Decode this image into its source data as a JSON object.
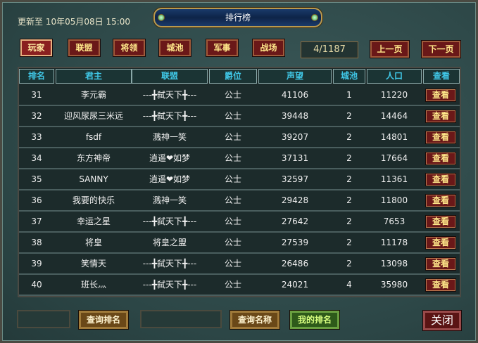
{
  "title": "排行榜",
  "update_text": "更新至 10年05月08日 15:00",
  "tabs": [
    {
      "label": "玩家",
      "active": true
    },
    {
      "label": "联盟"
    },
    {
      "label": "将领"
    },
    {
      "label": "城池"
    },
    {
      "label": "军事"
    },
    {
      "label": "战场"
    }
  ],
  "pagination": {
    "page": "4/1187",
    "prev": "上一页",
    "next": "下一页"
  },
  "columns": [
    "排名",
    "君主",
    "联盟",
    "爵位",
    "声望",
    "城池",
    "人口",
    "查看"
  ],
  "rows": [
    {
      "rank": "31",
      "lord": "李元霸",
      "alliance": "---╋弑天下╋---",
      "title": "公士",
      "prestige": "41106",
      "cities": "1",
      "population": "11220",
      "view": "查看"
    },
    {
      "rank": "32",
      "lord": "迎风尿尿三米远",
      "alliance": "---╋弑天下╋---",
      "title": "公士",
      "prestige": "39448",
      "cities": "2",
      "population": "14464",
      "view": "查看"
    },
    {
      "rank": "33",
      "lord": "fsdf",
      "alliance": "溅神一笑",
      "title": "公士",
      "prestige": "39207",
      "cities": "2",
      "population": "14801",
      "view": "查看"
    },
    {
      "rank": "34",
      "lord": "东方神帝",
      "alliance": "逍遥❤如梦",
      "title": "公士",
      "prestige": "37131",
      "cities": "2",
      "population": "17664",
      "view": "查看"
    },
    {
      "rank": "35",
      "lord": "SANNY",
      "alliance": "逍遥❤如梦",
      "title": "公士",
      "prestige": "32597",
      "cities": "2",
      "population": "11361",
      "view": "查看"
    },
    {
      "rank": "36",
      "lord": "我要的快乐",
      "alliance": "溅神一笑",
      "title": "公士",
      "prestige": "29428",
      "cities": "2",
      "population": "11800",
      "view": "查看"
    },
    {
      "rank": "37",
      "lord": "幸运之星",
      "alliance": "---╋弑天下╋---",
      "title": "公士",
      "prestige": "27642",
      "cities": "2",
      "population": "7653",
      "view": "查看"
    },
    {
      "rank": "38",
      "lord": "将皇",
      "alliance": "将皇之盟",
      "title": "公士",
      "prestige": "27539",
      "cities": "2",
      "population": "11178",
      "view": "查看"
    },
    {
      "rank": "39",
      "lord": "笑情天",
      "alliance": "---╋弑天下╋---",
      "title": "公士",
      "prestige": "26486",
      "cities": "2",
      "population": "13098",
      "view": "查看"
    },
    {
      "rank": "40",
      "lord": "班长灬",
      "alliance": "---╋弑天下╋---",
      "title": "公士",
      "prestige": "24021",
      "cities": "4",
      "population": "35980",
      "view": "查看"
    }
  ],
  "footer": {
    "rank_input": "",
    "query_rank": "查询排名",
    "name_input": "",
    "query_name": "查询名称",
    "my_rank": "我的排名",
    "close": "关闭"
  }
}
